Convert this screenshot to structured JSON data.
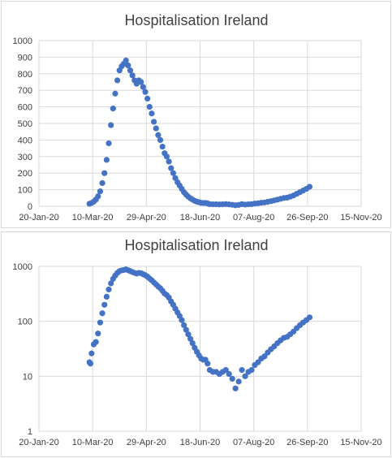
{
  "charts": [
    {
      "id": "linear",
      "title": "Hospitalisation Ireland",
      "y_ticks": [
        "0",
        "100",
        "200",
        "300",
        "400",
        "500",
        "600",
        "700",
        "800",
        "900",
        "1000"
      ],
      "x_ticks": [
        "20-Jan-20",
        "10-Mar-20",
        "29-Apr-20",
        "18-Jun-20",
        "07-Aug-20",
        "26-Sep-20",
        "15-Nov-20"
      ]
    },
    {
      "id": "log",
      "title": "Hospitalisation Ireland",
      "y_ticks": [
        "1",
        "10",
        "100",
        "1000"
      ],
      "x_ticks": [
        "20-Jan-20",
        "10-Mar-20",
        "29-Apr-20",
        "18-Jun-20",
        "07-Aug-20",
        "26-Sep-20",
        "15-Nov-20"
      ]
    }
  ],
  "chart_data": [
    {
      "type": "scatter",
      "title": "Hospitalisation Ireland",
      "xlabel": "",
      "ylabel": "",
      "x_axis": "date",
      "xlim": [
        "2020-01-20",
        "2020-11-15"
      ],
      "ylim": [
        0,
        1000
      ],
      "y_scale": "linear",
      "grid": true,
      "legend": "none",
      "marker_color": "#4472c4",
      "points": [
        [
          "2020-03-07",
          15
        ],
        [
          "2020-03-09",
          20
        ],
        [
          "2020-03-11",
          28
        ],
        [
          "2020-03-13",
          40
        ],
        [
          "2020-03-15",
          60
        ],
        [
          "2020-03-17",
          90
        ],
        [
          "2020-03-19",
          140
        ],
        [
          "2020-03-21",
          200
        ],
        [
          "2020-03-23",
          280
        ],
        [
          "2020-03-25",
          380
        ],
        [
          "2020-03-27",
          490
        ],
        [
          "2020-03-29",
          590
        ],
        [
          "2020-03-31",
          680
        ],
        [
          "2020-04-02",
          760
        ],
        [
          "2020-04-04",
          820
        ],
        [
          "2020-04-06",
          845
        ],
        [
          "2020-04-08",
          860
        ],
        [
          "2020-04-10",
          880
        ],
        [
          "2020-04-12",
          850
        ],
        [
          "2020-04-14",
          820
        ],
        [
          "2020-04-16",
          790
        ],
        [
          "2020-04-18",
          760
        ],
        [
          "2020-04-20",
          740
        ],
        [
          "2020-04-22",
          760
        ],
        [
          "2020-04-24",
          750
        ],
        [
          "2020-04-26",
          720
        ],
        [
          "2020-04-28",
          690
        ],
        [
          "2020-04-30",
          650
        ],
        [
          "2020-05-02",
          600
        ],
        [
          "2020-05-04",
          560
        ],
        [
          "2020-05-06",
          510
        ],
        [
          "2020-05-08",
          470
        ],
        [
          "2020-05-10",
          430
        ],
        [
          "2020-05-12",
          400
        ],
        [
          "2020-05-14",
          360
        ],
        [
          "2020-05-16",
          320
        ],
        [
          "2020-05-18",
          300
        ],
        [
          "2020-05-20",
          270
        ],
        [
          "2020-05-22",
          230
        ],
        [
          "2020-05-24",
          200
        ],
        [
          "2020-05-26",
          170
        ],
        [
          "2020-05-28",
          145
        ],
        [
          "2020-05-30",
          125
        ],
        [
          "2020-06-01",
          105
        ],
        [
          "2020-06-03",
          85
        ],
        [
          "2020-06-05",
          70
        ],
        [
          "2020-06-07",
          58
        ],
        [
          "2020-06-09",
          48
        ],
        [
          "2020-06-11",
          40
        ],
        [
          "2020-06-13",
          33
        ],
        [
          "2020-06-15",
          28
        ],
        [
          "2020-06-17",
          24
        ],
        [
          "2020-06-19",
          21
        ],
        [
          "2020-06-21",
          20
        ],
        [
          "2020-06-23",
          20
        ],
        [
          "2020-06-25",
          17
        ],
        [
          "2020-06-27",
          13
        ],
        [
          "2020-06-30",
          12
        ],
        [
          "2020-07-03",
          12
        ],
        [
          "2020-07-06",
          11
        ],
        [
          "2020-07-09",
          12
        ],
        [
          "2020-07-12",
          13
        ],
        [
          "2020-07-15",
          11
        ],
        [
          "2020-07-18",
          9
        ],
        [
          "2020-07-21",
          6
        ],
        [
          "2020-07-24",
          8
        ],
        [
          "2020-07-27",
          13
        ],
        [
          "2020-07-30",
          10
        ],
        [
          "2020-08-02",
          12
        ],
        [
          "2020-08-05",
          13
        ],
        [
          "2020-08-08",
          16
        ],
        [
          "2020-08-11",
          18
        ],
        [
          "2020-08-14",
          21
        ],
        [
          "2020-08-17",
          23
        ],
        [
          "2020-08-20",
          27
        ],
        [
          "2020-08-23",
          31
        ],
        [
          "2020-08-26",
          35
        ],
        [
          "2020-08-29",
          40
        ],
        [
          "2020-09-01",
          45
        ],
        [
          "2020-09-04",
          50
        ],
        [
          "2020-09-07",
          52
        ],
        [
          "2020-09-10",
          58
        ],
        [
          "2020-09-13",
          65
        ],
        [
          "2020-09-16",
          75
        ],
        [
          "2020-09-19",
          85
        ],
        [
          "2020-09-22",
          95
        ],
        [
          "2020-09-25",
          105
        ],
        [
          "2020-09-28",
          118
        ]
      ]
    },
    {
      "type": "scatter",
      "title": "Hospitalisation Ireland",
      "xlabel": "",
      "ylabel": "",
      "x_axis": "date",
      "xlim": [
        "2020-01-20",
        "2020-11-15"
      ],
      "ylim": [
        1,
        1000
      ],
      "y_scale": "log",
      "grid": true,
      "legend": "none",
      "marker_color": "#4472c4",
      "points": [
        [
          "2020-03-07",
          18
        ],
        [
          "2020-03-08",
          17
        ],
        [
          "2020-03-09",
          26
        ],
        [
          "2020-03-11",
          38
        ],
        [
          "2020-03-13",
          42
        ],
        [
          "2020-03-15",
          60
        ],
        [
          "2020-03-17",
          95
        ],
        [
          "2020-03-19",
          140
        ],
        [
          "2020-03-21",
          200
        ],
        [
          "2020-03-23",
          280
        ],
        [
          "2020-03-25",
          380
        ],
        [
          "2020-03-27",
          490
        ],
        [
          "2020-03-29",
          590
        ],
        [
          "2020-03-31",
          680
        ],
        [
          "2020-04-02",
          760
        ],
        [
          "2020-04-04",
          820
        ],
        [
          "2020-04-06",
          845
        ],
        [
          "2020-04-08",
          860
        ],
        [
          "2020-04-10",
          880
        ],
        [
          "2020-04-12",
          850
        ],
        [
          "2020-04-14",
          820
        ],
        [
          "2020-04-16",
          790
        ],
        [
          "2020-04-18",
          760
        ],
        [
          "2020-04-20",
          740
        ],
        [
          "2020-04-22",
          760
        ],
        [
          "2020-04-24",
          750
        ],
        [
          "2020-04-26",
          720
        ],
        [
          "2020-04-28",
          690
        ],
        [
          "2020-04-30",
          650
        ],
        [
          "2020-05-02",
          600
        ],
        [
          "2020-05-04",
          560
        ],
        [
          "2020-05-06",
          510
        ],
        [
          "2020-05-08",
          470
        ],
        [
          "2020-05-10",
          430
        ],
        [
          "2020-05-12",
          400
        ],
        [
          "2020-05-14",
          360
        ],
        [
          "2020-05-16",
          320
        ],
        [
          "2020-05-18",
          300
        ],
        [
          "2020-05-20",
          270
        ],
        [
          "2020-05-22",
          230
        ],
        [
          "2020-05-24",
          200
        ],
        [
          "2020-05-26",
          170
        ],
        [
          "2020-05-28",
          145
        ],
        [
          "2020-05-30",
          125
        ],
        [
          "2020-06-01",
          105
        ],
        [
          "2020-06-03",
          85
        ],
        [
          "2020-06-05",
          70
        ],
        [
          "2020-06-07",
          58
        ],
        [
          "2020-06-09",
          48
        ],
        [
          "2020-06-11",
          40
        ],
        [
          "2020-06-13",
          33
        ],
        [
          "2020-06-15",
          28
        ],
        [
          "2020-06-17",
          24
        ],
        [
          "2020-06-19",
          21
        ],
        [
          "2020-06-21",
          20
        ],
        [
          "2020-06-23",
          20
        ],
        [
          "2020-06-25",
          17
        ],
        [
          "2020-06-27",
          13
        ],
        [
          "2020-06-30",
          12
        ],
        [
          "2020-07-03",
          12
        ],
        [
          "2020-07-06",
          11
        ],
        [
          "2020-07-09",
          12
        ],
        [
          "2020-07-12",
          13
        ],
        [
          "2020-07-15",
          11
        ],
        [
          "2020-07-18",
          9
        ],
        [
          "2020-07-21",
          6
        ],
        [
          "2020-07-24",
          8
        ],
        [
          "2020-07-27",
          13
        ],
        [
          "2020-07-30",
          10
        ],
        [
          "2020-08-02",
          12
        ],
        [
          "2020-08-05",
          13
        ],
        [
          "2020-08-08",
          16
        ],
        [
          "2020-08-11",
          18
        ],
        [
          "2020-08-14",
          21
        ],
        [
          "2020-08-17",
          23
        ],
        [
          "2020-08-20",
          27
        ],
        [
          "2020-08-23",
          31
        ],
        [
          "2020-08-26",
          35
        ],
        [
          "2020-08-29",
          40
        ],
        [
          "2020-09-01",
          45
        ],
        [
          "2020-09-04",
          50
        ],
        [
          "2020-09-07",
          52
        ],
        [
          "2020-09-10",
          58
        ],
        [
          "2020-09-13",
          65
        ],
        [
          "2020-09-16",
          75
        ],
        [
          "2020-09-19",
          85
        ],
        [
          "2020-09-22",
          95
        ],
        [
          "2020-09-25",
          105
        ],
        [
          "2020-09-28",
          118
        ]
      ]
    }
  ]
}
